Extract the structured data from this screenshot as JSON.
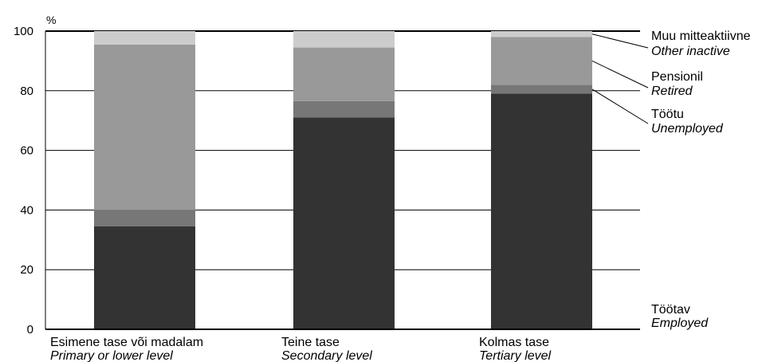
{
  "chart_data": {
    "type": "bar",
    "stacked": true,
    "unit_label": "%",
    "ylim": [
      0,
      100
    ],
    "yticks": [
      0,
      20,
      40,
      60,
      80,
      100
    ],
    "grid": true,
    "legend_placement": "right",
    "categories": [
      {
        "label": "Esimene tase või madalam",
        "label_en": "Primary or lower level"
      },
      {
        "label": "Teine tase",
        "label_en": "Secondary level"
      },
      {
        "label": "Kolmas tase",
        "label_en": "Tertiary level"
      }
    ],
    "series": [
      {
        "name": "Töötav",
        "name_en": "Employed",
        "color": "#333333",
        "values": [
          34.5,
          71,
          79
        ]
      },
      {
        "name": "Töötu",
        "name_en": "Unemployed",
        "color": "#777777",
        "values": [
          5.5,
          5.5,
          3
        ]
      },
      {
        "name": "Pensionil",
        "name_en": "Retired",
        "color": "#999999",
        "values": [
          55.5,
          18,
          16
        ]
      },
      {
        "name": "Muu mitteaktiivne",
        "name_en": "Other inactive",
        "color": "#cccccc",
        "values": [
          4.5,
          5.5,
          2
        ]
      }
    ]
  }
}
